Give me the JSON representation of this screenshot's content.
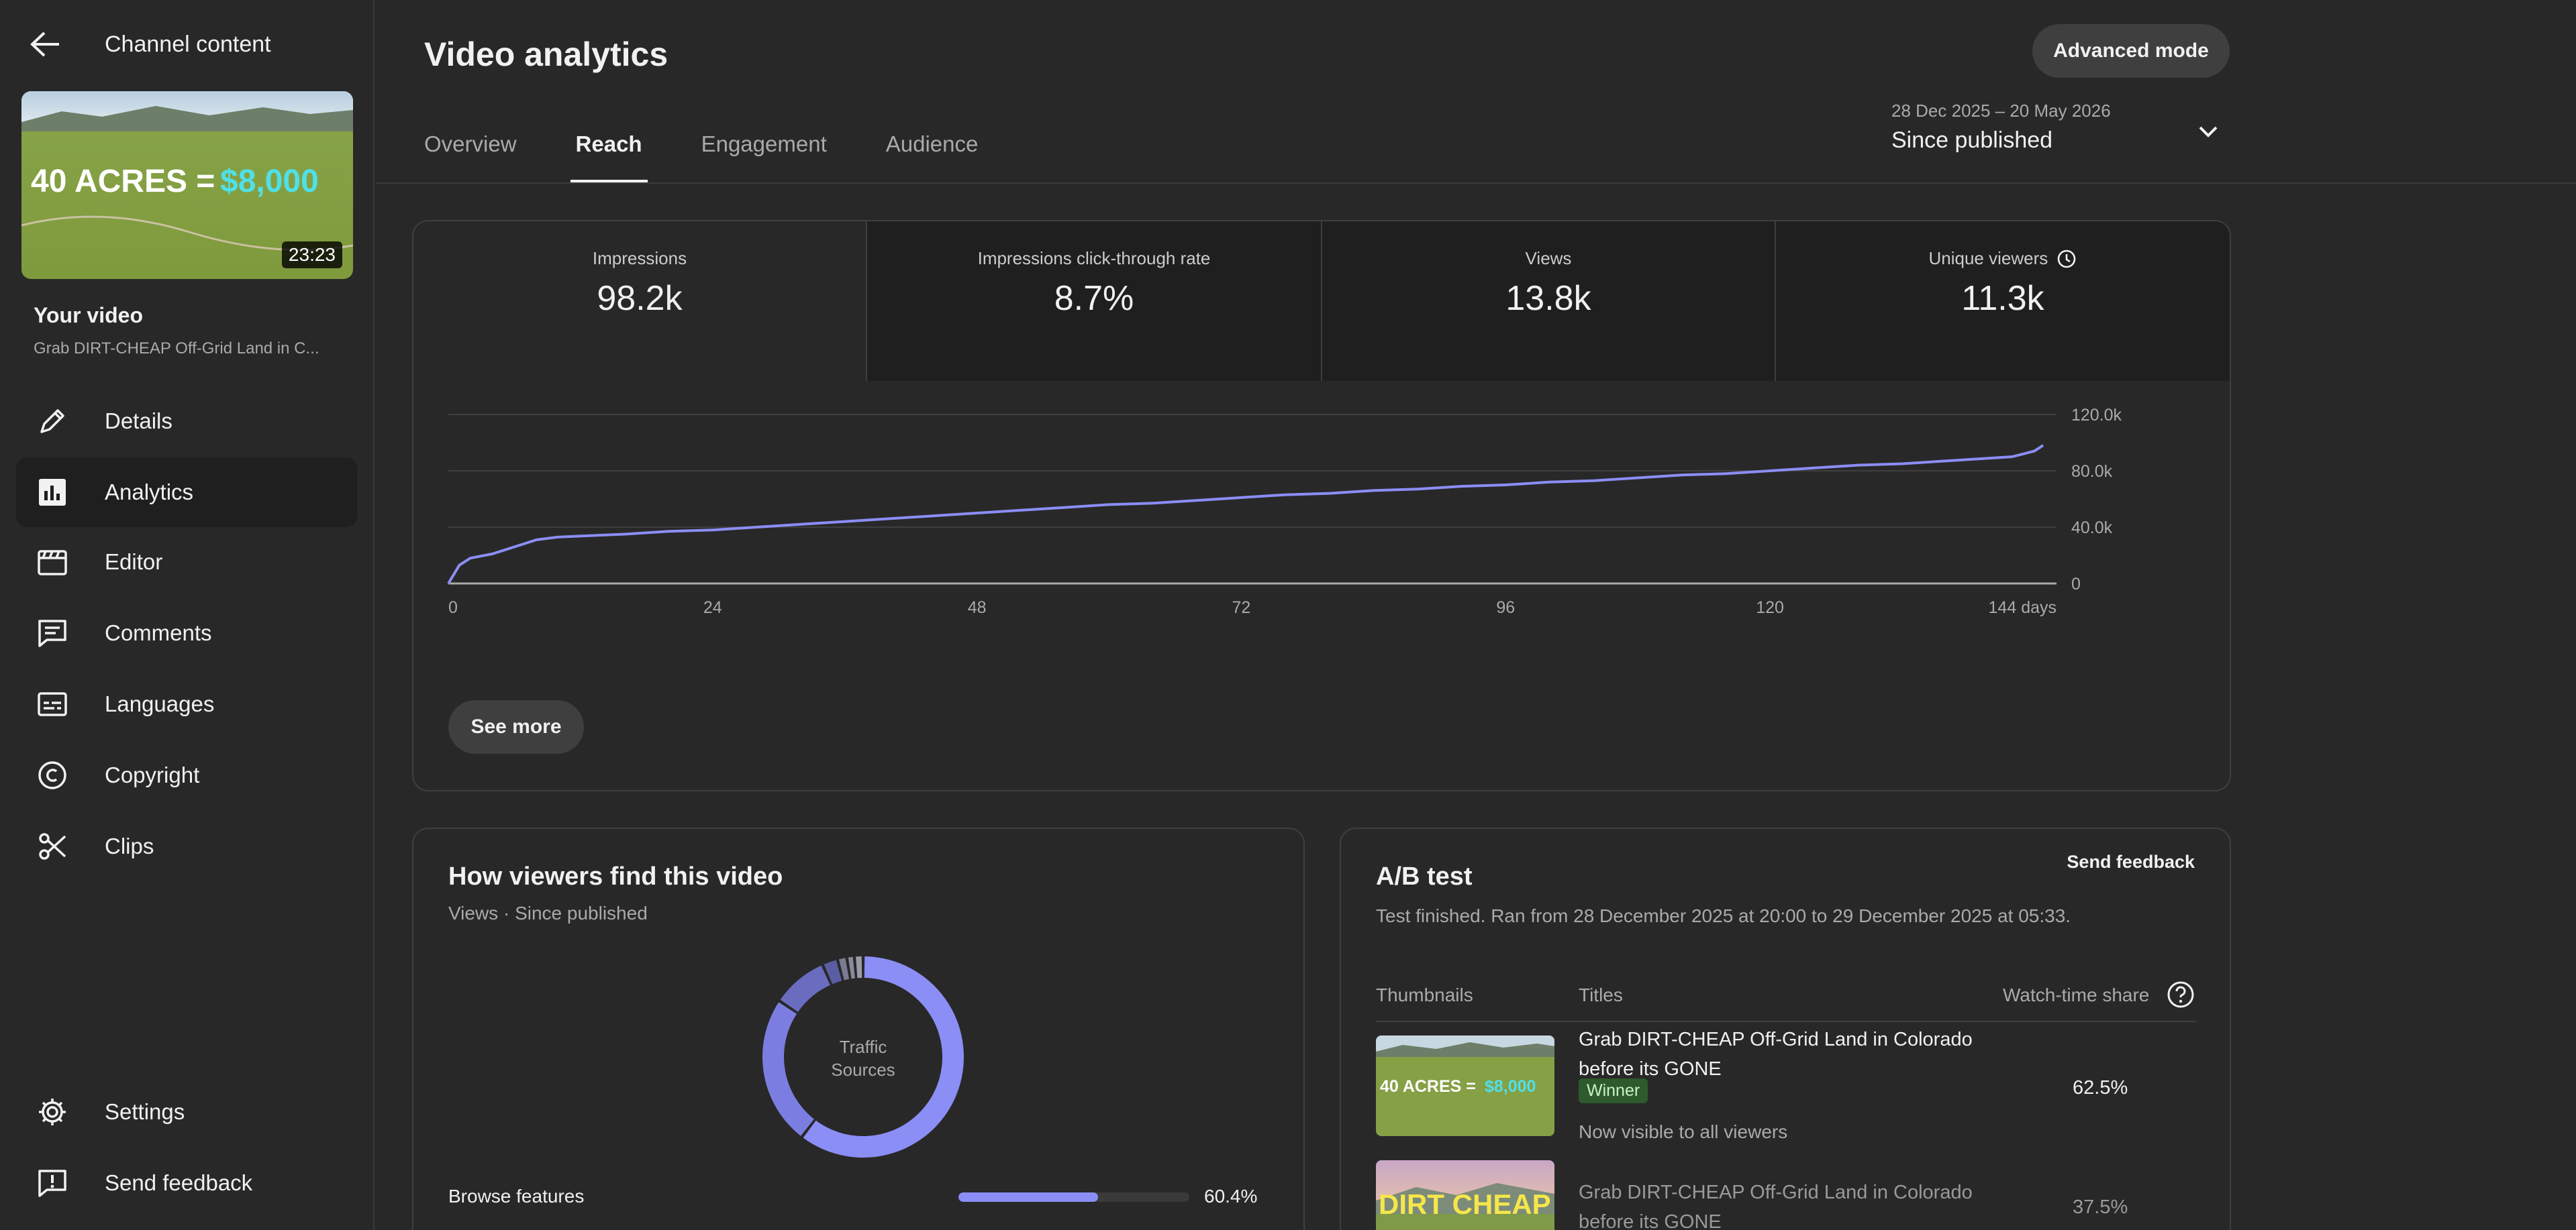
{
  "sidebar": {
    "header_title": "Channel content",
    "thumbnail": {
      "overlay_left": "40 ACRES =",
      "overlay_right": "$8,000",
      "duration": "23:23"
    },
    "your_video_label": "Your video",
    "video_title": "Grab DIRT-CHEAP Off-Grid Land in C...",
    "items": [
      {
        "label": "Details",
        "icon": "pencil-icon"
      },
      {
        "label": "Analytics",
        "icon": "analytics-icon"
      },
      {
        "label": "Editor",
        "icon": "clapperboard-icon"
      },
      {
        "label": "Comments",
        "icon": "comment-icon"
      },
      {
        "label": "Languages",
        "icon": "subtitles-icon"
      },
      {
        "label": "Copyright",
        "icon": "copyright-icon"
      },
      {
        "label": "Clips",
        "icon": "scissors-icon"
      }
    ],
    "bottom_items": [
      {
        "label": "Settings",
        "icon": "gear-icon"
      },
      {
        "label": "Send feedback",
        "icon": "feedback-icon"
      }
    ]
  },
  "header": {
    "title": "Video analytics",
    "advanced_mode": "Advanced mode",
    "tabs": [
      "Overview",
      "Reach",
      "Engagement",
      "Audience"
    ],
    "active_tab": "Reach",
    "date_range": "28 Dec 2025 – 20 May 2026",
    "date_label": "Since published"
  },
  "metrics": [
    {
      "label": "Impressions",
      "value": "98.2k"
    },
    {
      "label": "Impressions click-through rate",
      "value": "8.7%"
    },
    {
      "label": "Views",
      "value": "13.8k"
    },
    {
      "label": "Unique viewers",
      "value": "11.3k"
    }
  ],
  "chart_data": {
    "type": "line",
    "series": [
      {
        "values": [
          0,
          13,
          18,
          21,
          26,
          31,
          33,
          34,
          35,
          37,
          38,
          40,
          42,
          44,
          46,
          48,
          50,
          52,
          54,
          56,
          57,
          59,
          61,
          63,
          64,
          66,
          67,
          69,
          70,
          72,
          73,
          75,
          77,
          78,
          80,
          82,
          84,
          85,
          87,
          89,
          90,
          92,
          94,
          95,
          96,
          97,
          98.2
        ]
      }
    ],
    "x": [
      0,
      1,
      2,
      4,
      6,
      8,
      10,
      13,
      16,
      20,
      24,
      28,
      32,
      36,
      40,
      44,
      48,
      52,
      56,
      60,
      64,
      68,
      72,
      76,
      80,
      84,
      88,
      92,
      96,
      100,
      104,
      108,
      112,
      116,
      120,
      124,
      128,
      132,
      136,
      140,
      142,
      143,
      144,
      144.2,
      144.4,
      144.6,
      144.8
    ],
    "x_ticks": [
      "0",
      "24",
      "48",
      "72",
      "96",
      "120",
      "144 days"
    ],
    "y_ticks": [
      "0",
      "40.0k",
      "80.0k",
      "120.0k"
    ],
    "xlim": [
      0,
      144.8
    ],
    "ylim": [
      0,
      120
    ],
    "grid": true,
    "color": "#8b8ef5"
  },
  "see_more": "See more",
  "traffic": {
    "title": "How viewers find this video",
    "subtitle": "Views · Since published",
    "donut_label_1": "Traffic",
    "donut_label_2": "Sources",
    "rows": [
      {
        "label": "Browse features",
        "value": "60.4%",
        "fraction": 0.604
      }
    ],
    "segments": [
      60.4,
      24.0,
      9.0,
      2.5,
      1.5,
      1.2,
      1.4
    ],
    "segment_colors": [
      "#8b8ef5",
      "#7b7ee0",
      "#6a6cc0",
      "#5b5da3",
      "#7a7a92",
      "#8a8a9e",
      "#9a9aa8"
    ]
  },
  "ab_test": {
    "title": "A/B test",
    "send_feedback": "Send feedback",
    "subtitle": "Test finished. Ran from 28 December 2025 at 20:00 to 29 December 2025 at 05:33.",
    "headers": {
      "thumbnails": "Thumbnails",
      "titles": "Titles",
      "share": "Watch-time share"
    },
    "rows": [
      {
        "title": "Grab DIRT-CHEAP Off-Grid Land in Colorado before its GONE",
        "badge": "Winner",
        "note": "Now visible to all viewers",
        "share": "62.5%",
        "thumb_text_1": "40 ACRES = ",
        "thumb_text_2": "$8,000"
      },
      {
        "title": "Grab DIRT-CHEAP Off-Grid Land in Colorado before its GONE",
        "share": "37.5%",
        "thumb_text": "DIRT CHEAP"
      }
    ]
  }
}
